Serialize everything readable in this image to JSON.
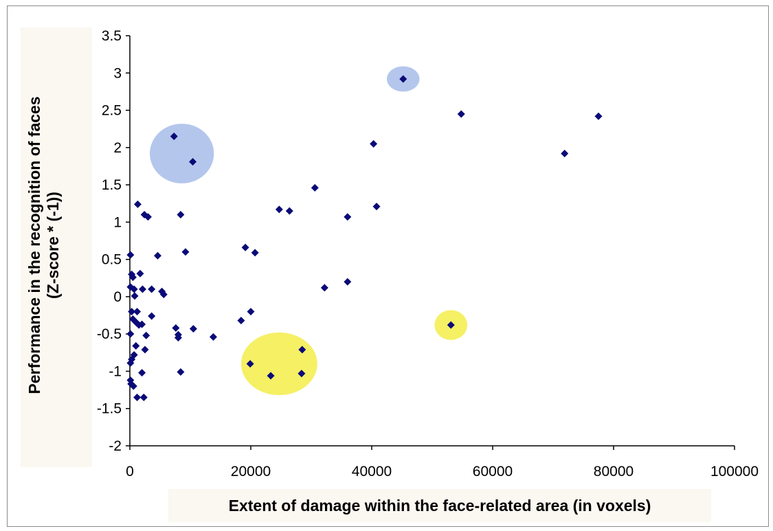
{
  "chart_data": {
    "type": "scatter",
    "title": "",
    "xlabel": "Extent of damage within the face-related area (in voxels)",
    "ylabel_lines": [
      "Performance in the recognition of faces",
      "(Z-score * (-1))"
    ],
    "xlim": [
      0,
      100000
    ],
    "ylim": [
      -2,
      3.5
    ],
    "x_ticks": [
      0,
      20000,
      40000,
      60000,
      80000,
      100000
    ],
    "x_tick_labels": [
      "0",
      "20000",
      "40000",
      "60000",
      "80000",
      "100000"
    ],
    "y_ticks": [
      -2,
      -1.5,
      -1,
      -0.5,
      0,
      0.5,
      1,
      1.5,
      2,
      2.5,
      3,
      3.5
    ],
    "y_tick_labels": [
      "-2",
      "-1.5",
      "-1",
      "-0.5",
      "0",
      "0.5",
      "1",
      "1.5",
      "2",
      "2.5",
      "3",
      "3.5"
    ],
    "grid": false,
    "marker_color": "#0a0a78",
    "series": [
      {
        "points": [
          [
            7300,
            2.15
          ],
          [
            10400,
            1.81
          ],
          [
            45200,
            2.92
          ],
          [
            54800,
            2.45
          ],
          [
            77500,
            2.42
          ],
          [
            71900,
            1.92
          ],
          [
            40300,
            2.05
          ],
          [
            30600,
            1.46
          ],
          [
            40800,
            1.21
          ],
          [
            36000,
            1.07
          ],
          [
            24700,
            1.17
          ],
          [
            26400,
            1.15
          ],
          [
            1300,
            1.24
          ],
          [
            2400,
            1.1
          ],
          [
            3000,
            1.07
          ],
          [
            8400,
            1.1
          ],
          [
            9200,
            0.6
          ],
          [
            19100,
            0.66
          ],
          [
            20700,
            0.59
          ],
          [
            4600,
            0.55
          ],
          [
            100,
            0.56
          ],
          [
            300,
            0.3
          ],
          [
            1700,
            0.31
          ],
          [
            500,
            0.26
          ],
          [
            100,
            0.13
          ],
          [
            700,
            0.1
          ],
          [
            2100,
            0.1
          ],
          [
            3600,
            0.1
          ],
          [
            5300,
            0.07
          ],
          [
            5600,
            0.03
          ],
          [
            32200,
            0.12
          ],
          [
            36000,
            0.2
          ],
          [
            800,
            0.01
          ],
          [
            300,
            -0.2
          ],
          [
            1200,
            -0.2
          ],
          [
            3600,
            -0.26
          ],
          [
            500,
            -0.3
          ],
          [
            1100,
            -0.35
          ],
          [
            1500,
            -0.38
          ],
          [
            2000,
            -0.37
          ],
          [
            7600,
            -0.42
          ],
          [
            10500,
            -0.43
          ],
          [
            18400,
            -0.32
          ],
          [
            20000,
            -0.2
          ],
          [
            100,
            -0.5
          ],
          [
            2700,
            -0.52
          ],
          [
            8000,
            -0.51
          ],
          [
            8000,
            -0.55
          ],
          [
            13800,
            -0.54
          ],
          [
            1000,
            -0.66
          ],
          [
            2500,
            -0.71
          ],
          [
            700,
            -0.78
          ],
          [
            300,
            -0.84
          ],
          [
            100,
            -0.89
          ],
          [
            2000,
            -1.02
          ],
          [
            8400,
            -1.01
          ],
          [
            100,
            -1.12
          ],
          [
            200,
            -1.17
          ],
          [
            600,
            -1.2
          ],
          [
            1200,
            -1.35
          ],
          [
            2300,
            -1.35
          ],
          [
            53100,
            -0.38
          ],
          [
            19900,
            -0.9
          ],
          [
            23300,
            -1.06
          ],
          [
            28400,
            -1.03
          ],
          [
            28500,
            -0.71
          ]
        ]
      }
    ],
    "highlights": [
      {
        "color": "#b4c6ec",
        "cx": 8600,
        "cy": 1.92,
        "rx": 5300,
        "ry": 0.4
      },
      {
        "color": "#b4c6ec",
        "cx": 45200,
        "cy": 2.92,
        "rx": 2700,
        "ry": 0.17
      },
      {
        "color": "#f5f064",
        "cx": 24700,
        "cy": -0.9,
        "rx": 6300,
        "ry": 0.42
      },
      {
        "color": "#f5f064",
        "cx": 53100,
        "cy": -0.38,
        "rx": 2700,
        "ry": 0.2
      }
    ]
  }
}
